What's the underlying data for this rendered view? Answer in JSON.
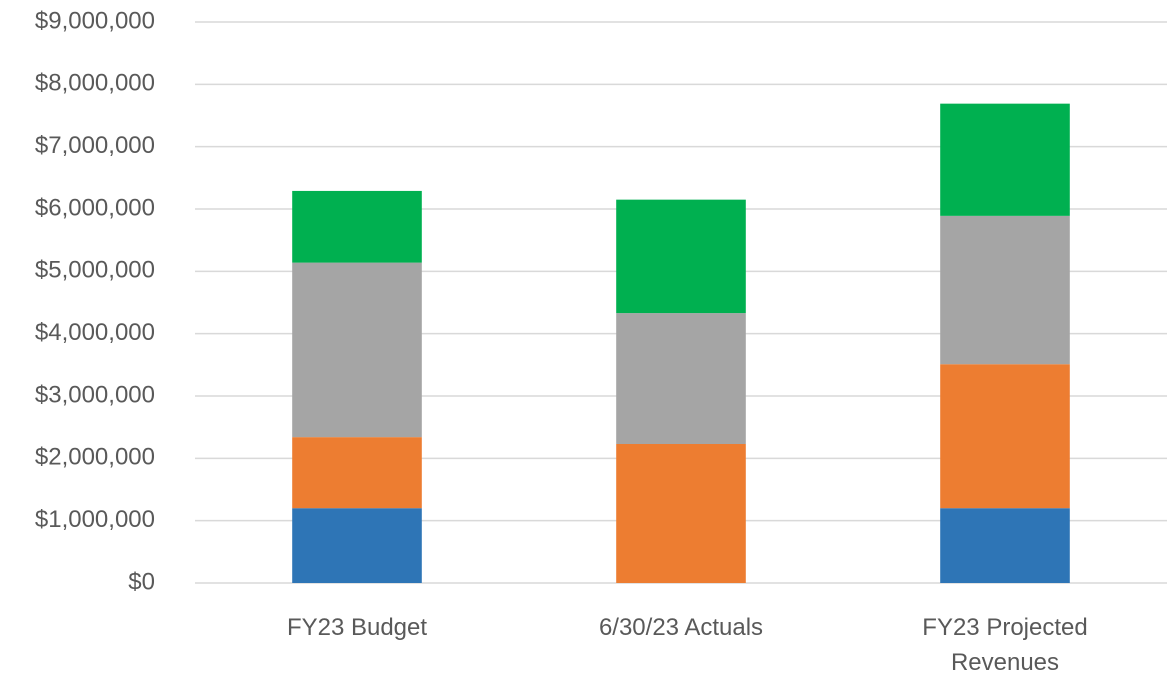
{
  "chart_data": {
    "type": "stacked_bar",
    "categories": [
      "FY23 Budget",
      "6/30/23 Actuals",
      "FY23 Projected Revenues"
    ],
    "series": [
      {
        "color": "#2e75b6",
        "values": [
          1200000,
          0,
          1200000
        ]
      },
      {
        "color": "#ed7d31",
        "values": [
          1140000,
          2230000,
          2310000
        ]
      },
      {
        "color": "#a5a5a5",
        "values": [
          2800000,
          2100000,
          2380000
        ]
      },
      {
        "color": "#00b050",
        "values": [
          1150000,
          1820000,
          1800000
        ]
      }
    ],
    "ylim": [
      0,
      9000000
    ],
    "yticks": [
      {
        "value": 0,
        "label": "$0"
      },
      {
        "value": 1000000,
        "label": "$1,000,000"
      },
      {
        "value": 2000000,
        "label": "$2,000,000"
      },
      {
        "value": 3000000,
        "label": "$3,000,000"
      },
      {
        "value": 4000000,
        "label": "$4,000,000"
      },
      {
        "value": 5000000,
        "label": "$5,000,000"
      },
      {
        "value": 6000000,
        "label": "$6,000,000"
      },
      {
        "value": 7000000,
        "label": "$7,000,000"
      },
      {
        "value": 8000000,
        "label": "$8,000,000"
      },
      {
        "value": 9000000,
        "label": "$9,000,000"
      }
    ],
    "grid": true
  }
}
